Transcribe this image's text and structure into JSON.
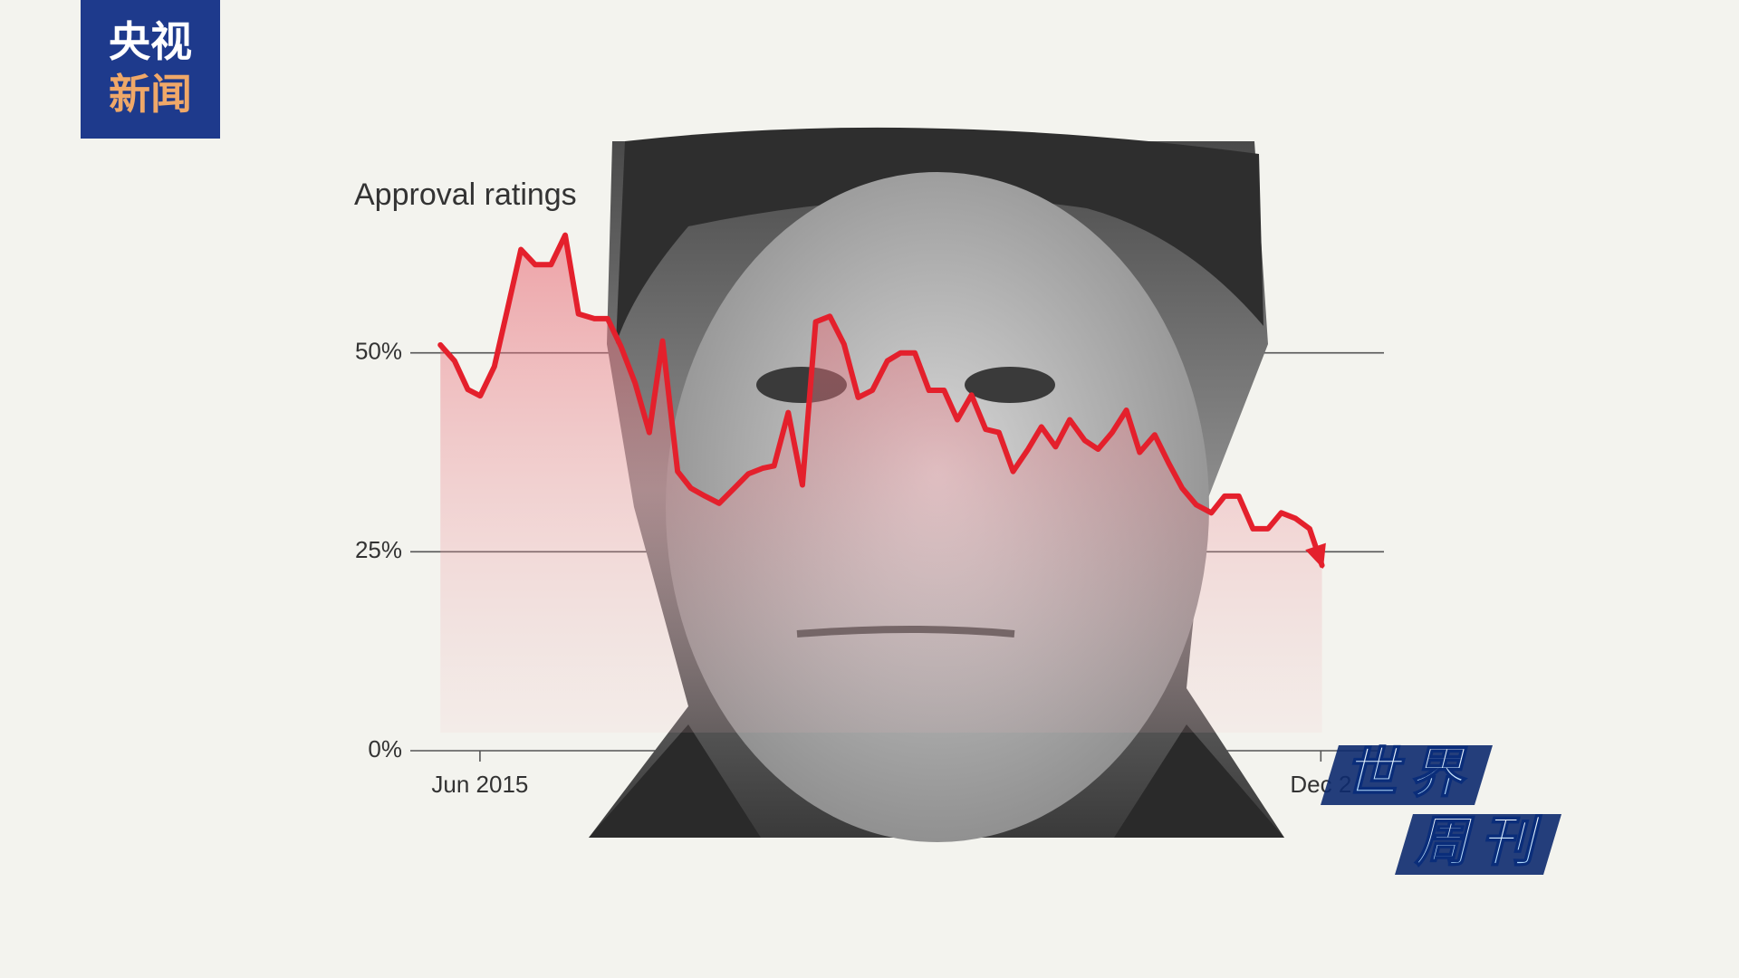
{
  "broadcaster_logo": {
    "line1": "央视",
    "line2": "新闻"
  },
  "program_logo": {
    "line1": "世界",
    "line2": "周刊"
  },
  "chart_data": {
    "type": "line",
    "title": "Approval ratings",
    "color": "#e4202c",
    "x": [
      2014.97,
      2015.13,
      2015.28,
      2015.42,
      2015.58,
      2015.73,
      2015.88,
      2016.04,
      2016.22,
      2016.38,
      2016.53,
      2016.71,
      2016.86,
      2017.01,
      2017.17,
      2017.33,
      2017.48,
      2017.65,
      2017.8,
      2017.96,
      2018.12,
      2018.29,
      2018.45,
      2018.61,
      2018.74,
      2018.9,
      2019.06,
      2019.21,
      2019.37,
      2019.53,
      2019.69,
      2019.85,
      2020.02,
      2020.17,
      2020.33,
      2020.49,
      2020.66,
      2020.81,
      2020.97,
      2021.13,
      2021.28,
      2021.44,
      2021.61,
      2021.76,
      2021.92,
      2022.08,
      2022.25,
      2022.4,
      2022.56,
      2022.72,
      2022.87,
      2023.04,
      2023.2,
      2023.35,
      2023.51,
      2023.68,
      2023.83,
      2023.99,
      2024.15,
      2024.32,
      2024.47,
      2024.63,
      2024.79,
      2024.93
    ],
    "values": [
      51.0,
      49.0,
      45.4,
      44.6,
      48.3,
      55.6,
      63.0,
      61.1,
      61.1,
      64.8,
      54.9,
      54.3,
      54.3,
      50.8,
      46.2,
      40.0,
      51.5,
      35.1,
      33.0,
      32.0,
      31.1,
      33.0,
      34.8,
      35.5,
      35.8,
      42.5,
      33.4,
      53.9,
      54.6,
      51.1,
      44.4,
      45.3,
      49.0,
      50.0,
      50.0,
      45.3,
      45.3,
      41.6,
      44.7,
      40.4,
      40.0,
      35.1,
      37.9,
      40.7,
      38.2,
      41.6,
      39.0,
      37.9,
      40.0,
      42.8,
      37.5,
      39.7,
      36.1,
      33.0,
      30.9,
      29.9,
      32.0,
      32.0,
      27.9,
      27.9,
      29.9,
      29.2,
      27.9,
      23.3
    ],
    "xlim": [
      2014.63,
      2025.63
    ],
    "xticks": [
      {
        "value": 2015.417,
        "label": "Jun 2015"
      },
      {
        "value": 2024.917,
        "label": "Dec 2"
      }
    ],
    "ylim": [
      0,
      70
    ],
    "yticks": [
      {
        "value": 0,
        "label": "0%"
      },
      {
        "value": 25,
        "label": "25%"
      },
      {
        "value": 50,
        "label": "50%"
      }
    ],
    "grid": true
  }
}
